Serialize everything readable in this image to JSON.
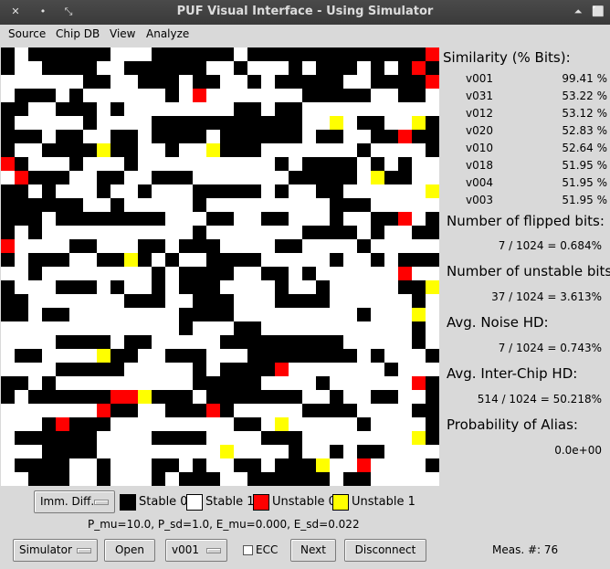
{
  "window": {
    "title": "PUF Visual Interface - Using Simulator",
    "close_glyph": "✕",
    "minimize_glyph": "•",
    "restore_glyph": "⤡",
    "collapse_glyph": "⏶",
    "maximize_glyph": "⬜"
  },
  "menu": [
    "Source",
    "Chip DB",
    "View",
    "Analyze"
  ],
  "colors": {
    "stable0": "#000000",
    "stable1": "#ffffff",
    "unstable0": "#ff0000",
    "unstable1": "#ffff00"
  },
  "grid": {
    "rows": 32,
    "cols": 32,
    "cells": [
      "01000000111000000100000000000002",
      "01100001100000011011101000101020",
      "11111100110001001101000001100002",
      "10001011111101211111110000011001",
      "00110001011111111001001111111111",
      "01111101111000000000001131001130",
      "00010011001000010000001001100200",
      "01100003001101130001111111011110",
      "20111011101111111111010000101011",
      "12000110011000111111100000130011",
      "00101110110111000001011001111113",
      "00000011011111011111111100011111",
      "00010000000011100110011101100210",
      "01011111111111011111110000101100",
      "21111001110010001111001111011111",
      "01000110030101100001111101101000",
      "11011111111010000110010111111211",
      "01110001011010001111011011111003",
      "00111111100011000111000011111101",
      "00100111111110000111111111011131",
      "11111111111110111001111111111101",
      "11110000100111110000000001111101",
      "10011113001100011100000000101110",
      "11110000011111010000211111110111",
      "00101111111111000001111011111120",
      "01000000223000100000001101100110",
      "11111112001100020111110000111100",
      "11102000111111111001311111011110",
      "10000001111000011110001111111130",
      "11100001111111113111101101001111",
      "10000110111001011001000311211110",
      "11000110111010001100000010011111"
    ]
  },
  "similarity": {
    "heading": "Similarity (% Bits):",
    "rows": [
      {
        "name": "v001",
        "value": "99.41 %"
      },
      {
        "name": "v031",
        "value": "53.22 %"
      },
      {
        "name": "v012",
        "value": "53.12 %"
      },
      {
        "name": "v020",
        "value": "52.83 %"
      },
      {
        "name": "v010",
        "value": "52.64 %"
      },
      {
        "name": "v018",
        "value": "51.95 %"
      },
      {
        "name": "v004",
        "value": "51.95 %"
      },
      {
        "name": "v003",
        "value": "51.95 %"
      }
    ]
  },
  "stats": {
    "flipped_heading": "Number of flipped bits:",
    "flipped_value": "7 / 1024 = 0.684%",
    "unstable_heading": "Number of unstable bits:",
    "unstable_value": "37 / 1024 = 3.613%",
    "noise_heading": "Avg. Noise HD:",
    "noise_value": "7 / 1024 = 0.743%",
    "interchip_heading": "Avg. Inter-Chip HD:",
    "interchip_value": "514 / 1024 = 50.218%",
    "alias_heading": "Probability of Alias:",
    "alias_value": "0.0e+00"
  },
  "legend": {
    "mode_selected": "Imm. Diff.",
    "stable0": "Stable 0",
    "stable1": "Stable 1",
    "unstable0": "Unstable 0",
    "unstable1": "Unstable 1"
  },
  "params_text": "P_mu=10.0, P_sd=1.0, E_mu=0.000, E_sd=0.022",
  "controls": {
    "source_selected": "Simulator",
    "open_label": "Open",
    "chip_selected": "v001",
    "ecc_label": "ECC",
    "ecc_checked": false,
    "next_label": "Next",
    "disconnect_label": "Disconnect",
    "meas_label": "Meas. #:",
    "meas_value": "76"
  }
}
